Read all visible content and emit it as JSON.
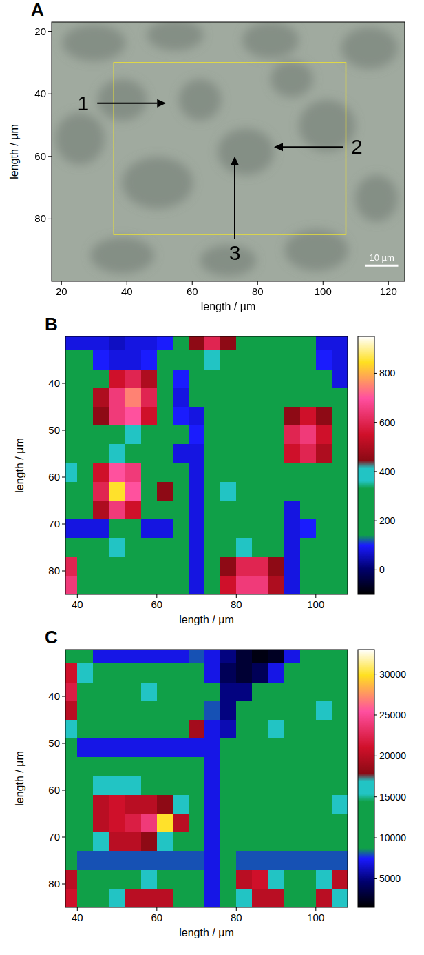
{
  "chart_data": [
    {
      "type": "image",
      "title": "A",
      "x_label": "length / µm",
      "y_label": "length / µm",
      "xlim": [
        17,
        125
      ],
      "ylim": [
        100,
        17
      ],
      "xticks": [
        20,
        40,
        60,
        80,
        100,
        120
      ],
      "yticks": [
        20,
        40,
        60,
        80
      ],
      "region": {
        "x": [
          36,
          107
        ],
        "y": [
          30,
          85
        ]
      },
      "annotations": [
        {
          "label": "1",
          "x": 52,
          "y": 43,
          "direction": "right"
        },
        {
          "label": "2",
          "x": 85,
          "y": 57,
          "direction": "left"
        },
        {
          "label": "3",
          "x": 73,
          "y": 60,
          "direction": "up"
        }
      ],
      "scale_bar": {
        "label": "10 µm",
        "length": 10,
        "x": 113,
        "y": 95
      }
    },
    {
      "type": "heatmap",
      "title": "B",
      "x_label": "length / µm",
      "y_label": "length / µm",
      "xlim": [
        37,
        108
      ],
      "ylim": [
        85,
        30
      ],
      "xticks": [
        40,
        60,
        80,
        100
      ],
      "yticks": [
        40,
        50,
        60,
        70,
        80
      ],
      "x": [
        38,
        42,
        46,
        50,
        54,
        58,
        62,
        66,
        70,
        74,
        78,
        82,
        86,
        90,
        94,
        98,
        102,
        106
      ],
      "y": [
        31,
        35,
        39,
        43,
        47,
        51,
        55,
        59,
        63,
        67,
        71,
        75,
        79,
        83
      ],
      "values": [
        [
          80,
          80,
          80,
          60,
          80,
          80,
          100,
          150,
          450,
          600,
          450,
          200,
          200,
          200,
          200,
          150,
          80,
          80
        ],
        [
          200,
          200,
          100,
          80,
          80,
          100,
          200,
          200,
          200,
          400,
          200,
          200,
          200,
          200,
          200,
          200,
          100,
          80
        ],
        [
          200,
          200,
          200,
          550,
          600,
          500,
          200,
          100,
          200,
          200,
          200,
          200,
          200,
          200,
          200,
          200,
          200,
          80
        ],
        [
          200,
          200,
          500,
          650,
          750,
          600,
          200,
          80,
          200,
          200,
          200,
          200,
          200,
          200,
          200,
          200,
          200,
          200
        ],
        [
          200,
          200,
          450,
          650,
          700,
          550,
          200,
          100,
          80,
          200,
          200,
          200,
          200,
          200,
          450,
          550,
          450,
          200
        ],
        [
          200,
          200,
          200,
          300,
          400,
          250,
          200,
          200,
          100,
          200,
          200,
          200,
          200,
          250,
          600,
          650,
          550,
          200
        ],
        [
          200,
          200,
          200,
          400,
          300,
          200,
          200,
          80,
          80,
          200,
          200,
          200,
          200,
          200,
          550,
          600,
          500,
          200
        ],
        [
          380,
          200,
          550,
          700,
          650,
          300,
          200,
          200,
          80,
          200,
          200,
          200,
          200,
          200,
          200,
          250,
          200,
          200
        ],
        [
          200,
          200,
          600,
          850,
          700,
          300,
          450,
          200,
          80,
          200,
          380,
          200,
          200,
          200,
          200,
          200,
          200,
          200
        ],
        [
          200,
          200,
          500,
          650,
          550,
          200,
          200,
          200,
          80,
          200,
          200,
          200,
          200,
          200,
          80,
          200,
          200,
          200
        ],
        [
          80,
          80,
          80,
          300,
          200,
          80,
          80,
          150,
          80,
          200,
          200,
          200,
          200,
          200,
          80,
          100,
          200,
          200
        ],
        [
          200,
          200,
          200,
          380,
          200,
          200,
          200,
          200,
          80,
          200,
          200,
          400,
          200,
          200,
          80,
          200,
          200,
          200
        ],
        [
          600,
          200,
          200,
          200,
          200,
          200,
          200,
          200,
          80,
          200,
          450,
          600,
          600,
          450,
          80,
          200,
          200,
          200
        ],
        [
          650,
          300,
          200,
          200,
          200,
          200,
          200,
          200,
          80,
          200,
          550,
          650,
          650,
          500,
          80,
          200,
          200,
          200
        ]
      ],
      "colorbar": {
        "range": [
          -100,
          950
        ],
        "ticks": [
          0,
          200,
          400,
          600,
          800
        ]
      }
    },
    {
      "type": "heatmap",
      "title": "C",
      "x_label": "length / µm",
      "y_label": "length / µm",
      "xlim": [
        37,
        108
      ],
      "ylim": [
        85,
        30
      ],
      "xticks": [
        40,
        60,
        80,
        100
      ],
      "yticks": [
        40,
        50,
        60,
        70,
        80
      ],
      "x": [
        38,
        42,
        46,
        50,
        54,
        58,
        62,
        66,
        70,
        74,
        78,
        82,
        86,
        90,
        94,
        98,
        102,
        106
      ],
      "y": [
        31,
        35,
        39,
        43,
        47,
        51,
        55,
        59,
        63,
        67,
        71,
        75,
        79,
        83
      ],
      "values": [
        [
          11000,
          11000,
          7000,
          7000,
          7000,
          7000,
          7000,
          7000,
          8000,
          7000,
          5000,
          3000,
          2000,
          2500,
          7000,
          11000,
          11000,
          11000
        ],
        [
          21000,
          16000,
          11000,
          11000,
          11000,
          11000,
          11000,
          11000,
          11000,
          7000,
          4000,
          3000,
          4000,
          7000,
          11000,
          11000,
          11000,
          11000
        ],
        [
          22000,
          11000,
          11000,
          11000,
          11000,
          15500,
          11000,
          11000,
          11000,
          11000,
          5000,
          5000,
          11000,
          11000,
          11000,
          11000,
          11000,
          11000
        ],
        [
          20000,
          11000,
          11000,
          11000,
          11000,
          11000,
          11000,
          11000,
          11000,
          8000,
          5000,
          11000,
          11000,
          11000,
          11000,
          11000,
          15500,
          11000
        ],
        [
          16000,
          11000,
          11000,
          11000,
          11000,
          11000,
          11000,
          11000,
          19000,
          7000,
          6000,
          11000,
          11000,
          15500,
          11000,
          11000,
          11000,
          11000
        ],
        [
          11000,
          7000,
          7000,
          7000,
          7000,
          7000,
          7000,
          7000,
          7000,
          7000,
          11000,
          11000,
          11000,
          11000,
          11000,
          11000,
          11000,
          11000
        ],
        [
          11000,
          11000,
          11000,
          11000,
          11000,
          11000,
          11000,
          11000,
          11000,
          7000,
          11000,
          11000,
          11000,
          11000,
          11000,
          11000,
          11000,
          11000
        ],
        [
          11000,
          11000,
          15500,
          16000,
          16000,
          11000,
          11000,
          11000,
          11000,
          7000,
          11000,
          11000,
          11000,
          11000,
          11000,
          11000,
          11000,
          11000
        ],
        [
          11000,
          11000,
          20000,
          21000,
          20000,
          20000,
          18000,
          16000,
          11000,
          7000,
          11000,
          11000,
          11000,
          11000,
          11000,
          11000,
          11000,
          15500
        ],
        [
          11000,
          11000,
          20000,
          21000,
          22000,
          24000,
          30000,
          20000,
          11000,
          7000,
          11000,
          11000,
          11000,
          11000,
          11000,
          11000,
          11000,
          11000
        ],
        [
          11000,
          11000,
          16000,
          20000,
          20000,
          18000,
          16000,
          11000,
          11000,
          7000,
          11000,
          11000,
          11000,
          11000,
          11000,
          11000,
          11000,
          11000
        ],
        [
          11000,
          8000,
          8000,
          8000,
          8000,
          8000,
          8000,
          8000,
          8000,
          7000,
          11000,
          8000,
          8000,
          8000,
          8000,
          8000,
          8000,
          8000
        ],
        [
          20000,
          11000,
          11000,
          11000,
          11000,
          16000,
          11000,
          11000,
          11000,
          7000,
          11000,
          20000,
          21000,
          16000,
          11000,
          11000,
          16000,
          20000
        ],
        [
          21000,
          11000,
          11000,
          15500,
          20000,
          20000,
          20000,
          11000,
          11000,
          7000,
          11000,
          16000,
          20000,
          20000,
          11000,
          11000,
          20000,
          15500
        ]
      ],
      "colorbar": {
        "range": [
          1500,
          33000
        ],
        "ticks": [
          5000,
          10000,
          15000,
          20000,
          25000,
          30000
        ]
      }
    }
  ]
}
